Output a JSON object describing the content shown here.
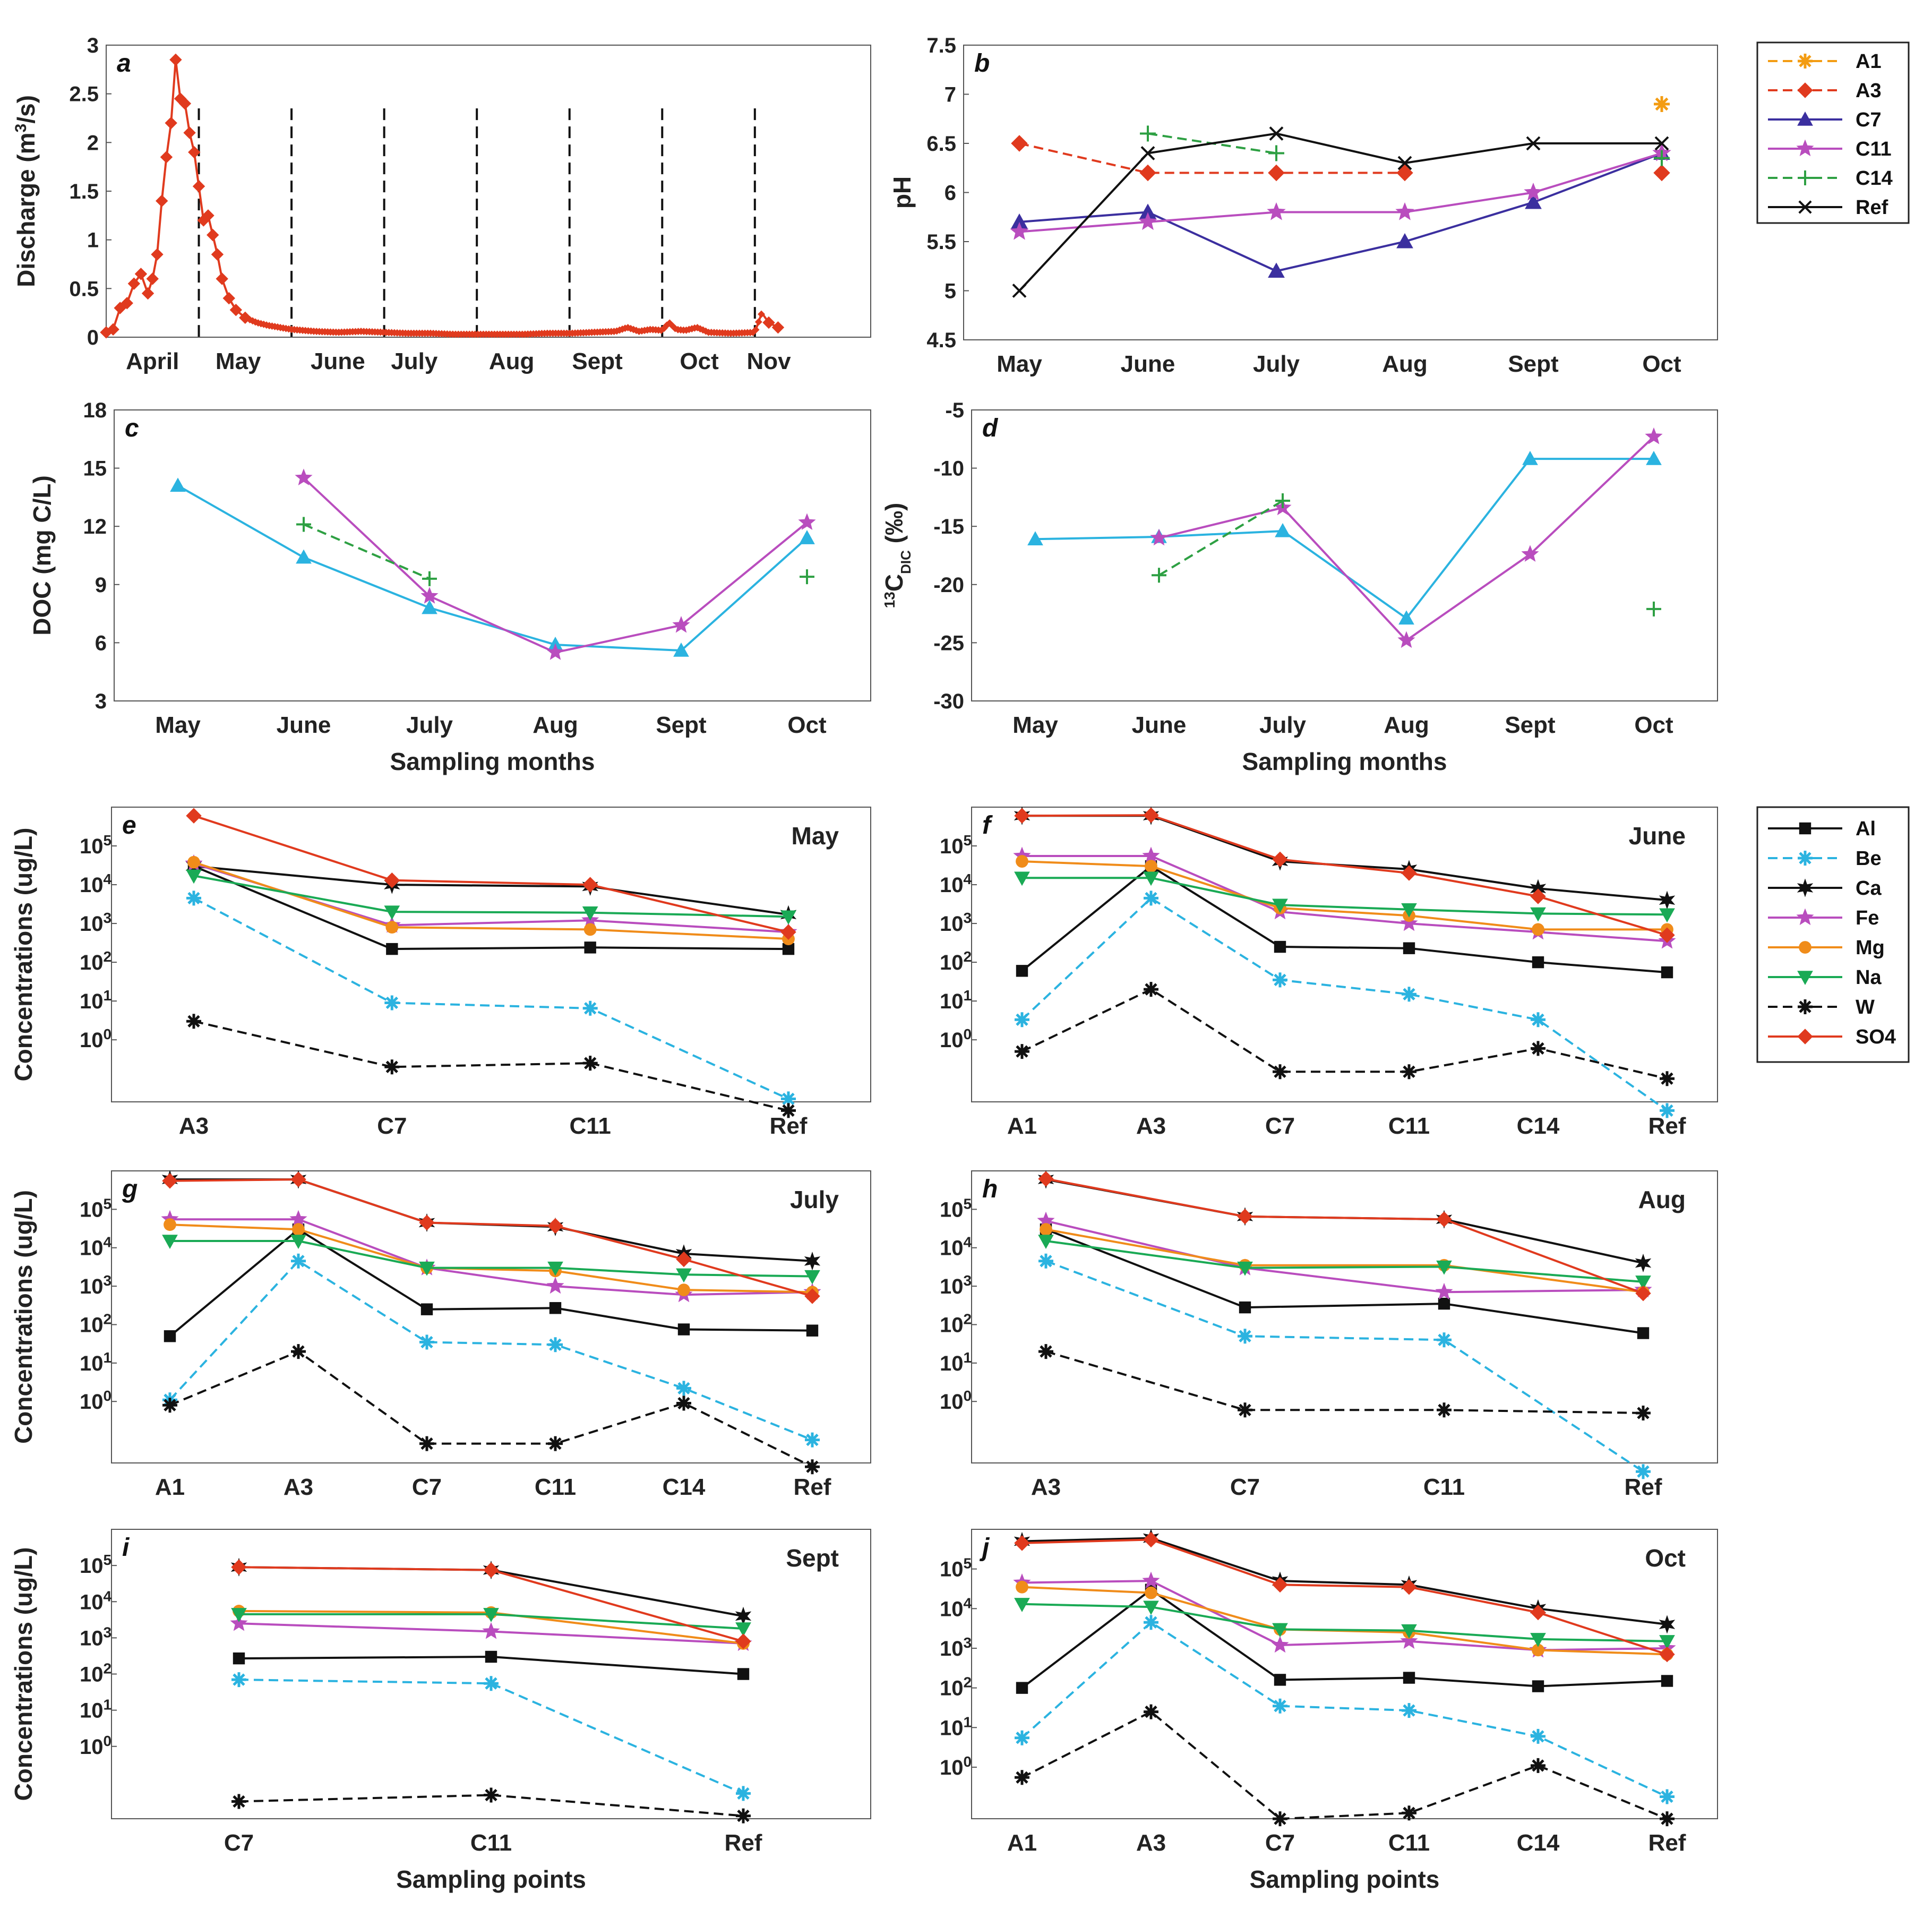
{
  "figure": {
    "xlabel_months": "Sampling months",
    "xlabel_points": "Sampling points"
  },
  "legend_top": {
    "entries": [
      {
        "name": "A1",
        "color": "#f39c12",
        "marker": "asterisk",
        "dash": true
      },
      {
        "name": "A3",
        "color": "#e03a1e",
        "marker": "diamond",
        "dash": true
      },
      {
        "name": "C7",
        "color": "#3b2f9f",
        "marker": "triangle",
        "dash": false
      },
      {
        "name": "C11",
        "color": "#b94dbe",
        "marker": "star",
        "dash": false
      },
      {
        "name": "C14",
        "color": "#2ea043",
        "marker": "plus",
        "dash": true
      },
      {
        "name": "Ref",
        "color": "#111111",
        "marker": "x",
        "dash": false
      }
    ]
  },
  "legend_bottom": {
    "entries": [
      {
        "name": "Al",
        "color": "#111111",
        "marker": "square",
        "dash": false
      },
      {
        "name": "Be",
        "color": "#2bb3e0",
        "marker": "asterisk",
        "dash": true
      },
      {
        "name": "Ca",
        "color": "#111111",
        "marker": "star6",
        "dash": false
      },
      {
        "name": "Fe",
        "color": "#b94dbe",
        "marker": "star",
        "dash": false
      },
      {
        "name": "Mg",
        "color": "#f08c1a",
        "marker": "circle",
        "dash": false
      },
      {
        "name": "Na",
        "color": "#1aaa55",
        "marker": "tri-down",
        "dash": false
      },
      {
        "name": "W",
        "color": "#111111",
        "marker": "asterisk",
        "dash": true
      },
      {
        "name": "SO4",
        "color": "#e03a1e",
        "marker": "diamond",
        "dash": false
      }
    ]
  },
  "chart_data": [
    {
      "panel": "a",
      "type": "line",
      "title": "",
      "ylabel": "Discharge (m³/s)",
      "xlabel": "",
      "ylim": [
        0,
        3
      ],
      "yticks": [
        0,
        0.5,
        1,
        1.5,
        2,
        2.5,
        3
      ],
      "xlim": [
        0,
        33
      ],
      "month_ticks": [
        {
          "label": "April",
          "x": 2.0
        },
        {
          "label": "May",
          "x": 5.7
        },
        {
          "label": "June",
          "x": 10.0
        },
        {
          "label": "July",
          "x": 13.3
        },
        {
          "label": "Aug",
          "x": 17.5
        },
        {
          "label": "Sept",
          "x": 21.2
        },
        {
          "label": "Oct",
          "x": 25.6
        },
        {
          "label": "Nov",
          "x": 28.6
        }
      ],
      "sampling_lines_x": [
        4.0,
        8.0,
        12.0,
        16.0,
        20.0,
        24.0,
        28.0
      ],
      "series": [
        {
          "name": "Discharge",
          "color": "#e03a1e",
          "x": [
            0,
            0.3,
            0.6,
            0.9,
            1.2,
            1.5,
            1.8,
            2.0,
            2.2,
            2.4,
            2.6,
            2.8,
            3.0,
            3.2,
            3.4,
            3.6,
            3.8,
            4.0,
            4.2,
            4.4,
            4.6,
            4.8,
            5.0,
            5.3,
            5.6,
            6,
            6.5,
            7,
            8,
            9,
            10,
            11,
            12,
            13,
            14,
            15,
            16,
            17,
            18,
            19,
            20,
            21,
            22,
            22.5,
            23,
            23.5,
            24,
            24.3,
            24.6,
            25,
            25.5,
            26,
            27,
            28,
            28.3,
            28.6,
            29
          ],
          "y": [
            0.05,
            0.08,
            0.3,
            0.35,
            0.55,
            0.65,
            0.45,
            0.6,
            0.85,
            1.4,
            1.85,
            2.2,
            2.85,
            2.45,
            2.4,
            2.1,
            1.9,
            1.55,
            1.2,
            1.25,
            1.05,
            0.85,
            0.6,
            0.4,
            0.28,
            0.2,
            0.15,
            0.12,
            0.08,
            0.06,
            0.05,
            0.06,
            0.05,
            0.04,
            0.04,
            0.03,
            0.03,
            0.03,
            0.03,
            0.04,
            0.04,
            0.05,
            0.06,
            0.1,
            0.06,
            0.08,
            0.07,
            0.15,
            0.08,
            0.07,
            0.1,
            0.05,
            0.04,
            0.05,
            0.25,
            0.15,
            0.1
          ]
        }
      ]
    },
    {
      "panel": "b",
      "type": "line",
      "ylabel": "pH",
      "xlabel": "",
      "categories": [
        "May",
        "June",
        "July",
        "Aug",
        "Sept",
        "Oct"
      ],
      "ylim": [
        4.5,
        7.5
      ],
      "yticks": [
        4.5,
        5,
        5.5,
        6,
        6.5,
        7,
        7.5
      ],
      "series": [
        {
          "name": "A1",
          "values": [
            null,
            null,
            null,
            null,
            null,
            6.9
          ]
        },
        {
          "name": "A3",
          "values": [
            6.5,
            6.2,
            6.2,
            6.2,
            null,
            6.2
          ]
        },
        {
          "name": "C7",
          "values": [
            5.7,
            5.8,
            5.2,
            5.5,
            5.9,
            6.4
          ]
        },
        {
          "name": "C11",
          "values": [
            5.6,
            5.7,
            5.8,
            5.8,
            6.0,
            6.4
          ]
        },
        {
          "name": "C14",
          "values": [
            null,
            6.6,
            6.4,
            null,
            null,
            6.35
          ]
        },
        {
          "name": "Ref",
          "values": [
            5.0,
            6.4,
            6.6,
            6.3,
            6.5,
            6.5
          ]
        }
      ]
    },
    {
      "panel": "c",
      "type": "line",
      "ylabel": "DOC (mg C/L)",
      "xlabel": "Sampling months",
      "categories": [
        "May",
        "June",
        "July",
        "Aug",
        "Sept",
        "Oct"
      ],
      "ylim": [
        3,
        18
      ],
      "yticks": [
        3,
        6,
        9,
        12,
        15,
        18
      ],
      "series": [
        {
          "name": "C7",
          "color": "#2bb3e0",
          "marker": "triangle",
          "values": [
            14.1,
            10.4,
            7.8,
            5.9,
            5.6,
            11.4
          ]
        },
        {
          "name": "C11",
          "color": "#b94dbe",
          "marker": "star",
          "values": [
            null,
            14.5,
            8.4,
            5.5,
            6.9,
            12.2
          ]
        },
        {
          "name": "C14",
          "color": "#2ea043",
          "marker": "plus",
          "values": [
            null,
            12.1,
            9.3,
            null,
            null,
            9.4
          ]
        }
      ]
    },
    {
      "panel": "d",
      "type": "line",
      "ylabel": "13C DIC (‰)",
      "xlabel": "Sampling months",
      "categories": [
        "May",
        "June",
        "July",
        "Aug",
        "Sept",
        "Oct"
      ],
      "ylim": [
        -30,
        -5
      ],
      "yticks": [
        -30,
        -25,
        -20,
        -15,
        -10,
        -5
      ],
      "series": [
        {
          "name": "C7",
          "color": "#2bb3e0",
          "marker": "triangle",
          "values": [
            -16.1,
            -15.9,
            -15.4,
            -22.9,
            -9.2,
            -9.2
          ]
        },
        {
          "name": "C11",
          "color": "#b94dbe",
          "marker": "star",
          "values": [
            null,
            -16.0,
            -13.4,
            -24.8,
            -17.4,
            -7.3
          ]
        },
        {
          "name": "C14",
          "color": "#2ea043",
          "marker": "plus",
          "values": [
            null,
            -19.2,
            -12.8,
            null,
            null,
            -22.1
          ]
        }
      ]
    },
    {
      "panel": "e",
      "month": "May",
      "type": "line",
      "scale": "log",
      "ylabel": "Concentrations (ug/L)",
      "xlabel": "",
      "categories": [
        "A3",
        "C7",
        "C11",
        "Ref"
      ],
      "ylim_log": [
        -1.6,
        6.0
      ],
      "series": [
        {
          "name": "Al",
          "values": [
            30000,
            220,
            240,
            220
          ]
        },
        {
          "name": "Be",
          "values": [
            4500,
            9,
            6.5,
            0.03
          ]
        },
        {
          "name": "Ca",
          "values": [
            30000,
            10000,
            9000,
            1700
          ]
        },
        {
          "name": "Fe",
          "values": [
            35000,
            900,
            1200,
            600
          ]
        },
        {
          "name": "Mg",
          "values": [
            38000,
            800,
            700,
            400
          ]
        },
        {
          "name": "Na",
          "values": [
            17000,
            2000,
            1900,
            1500
          ]
        },
        {
          "name": "W",
          "values": [
            3,
            0.2,
            0.25,
            0.015
          ]
        },
        {
          "name": "SO4",
          "values": [
            600000,
            13000,
            10000,
            600
          ]
        }
      ]
    },
    {
      "panel": "f",
      "month": "June",
      "type": "line",
      "scale": "log",
      "ylabel": "",
      "xlabel": "",
      "categories": [
        "A1",
        "A3",
        "C7",
        "C11",
        "C14",
        "Ref"
      ],
      "ylim_log": [
        -1.6,
        6.0
      ],
      "series": [
        {
          "name": "Al",
          "values": [
            60,
            30000,
            250,
            230,
            100,
            55
          ]
        },
        {
          "name": "Be",
          "values": [
            3.3,
            4500,
            35,
            15,
            3.3,
            0.015
          ]
        },
        {
          "name": "Ca",
          "values": [
            600000,
            600000,
            40000,
            25000,
            8000,
            4000
          ]
        },
        {
          "name": "Fe",
          "values": [
            55000,
            55000,
            2000,
            1000,
            600,
            350
          ]
        },
        {
          "name": "Mg",
          "values": [
            40000,
            30000,
            2500,
            1600,
            700,
            700
          ]
        },
        {
          "name": "Na",
          "values": [
            15000,
            15000,
            3000,
            2300,
            1800,
            1700
          ]
        },
        {
          "name": "W",
          "values": [
            0.5,
            20,
            0.15,
            0.15,
            0.6,
            0.1
          ]
        },
        {
          "name": "SO4",
          "values": [
            600000,
            620000,
            45000,
            20000,
            5000,
            500
          ]
        }
      ]
    },
    {
      "panel": "g",
      "month": "July",
      "type": "line",
      "scale": "log",
      "ylabel": "Concentrations (ug/L)",
      "xlabel": "",
      "categories": [
        "A1",
        "A3",
        "C7",
        "C11",
        "C14",
        "Ref"
      ],
      "ylim_log": [
        -1.6,
        6.0
      ],
      "series": [
        {
          "name": "Al",
          "values": [
            50,
            30000,
            250,
            270,
            75,
            70
          ]
        },
        {
          "name": "Be",
          "values": [
            1.1,
            4500,
            35,
            30,
            2.2,
            0.1
          ]
        },
        {
          "name": "Ca",
          "values": [
            600000,
            600000,
            45000,
            35000,
            7000,
            4500
          ]
        },
        {
          "name": "Fe",
          "values": [
            55000,
            55000,
            3000,
            1000,
            600,
            700
          ]
        },
        {
          "name": "Mg",
          "values": [
            40000,
            30000,
            3000,
            2500,
            800,
            700
          ]
        },
        {
          "name": "Na",
          "values": [
            15000,
            15000,
            3000,
            3000,
            2000,
            1800
          ]
        },
        {
          "name": "W",
          "values": [
            0.8,
            20,
            0.08,
            0.08,
            0.9,
            0.02
          ]
        },
        {
          "name": "SO4",
          "values": [
            550000,
            600000,
            45000,
            37000,
            5000,
            550
          ]
        }
      ]
    },
    {
      "panel": "h",
      "month": "Aug",
      "type": "line",
      "scale": "log",
      "ylabel": "",
      "xlabel": "",
      "categories": [
        "A3",
        "C7",
        "C11",
        "Ref"
      ],
      "ylim_log": [
        -1.6,
        6.0
      ],
      "series": [
        {
          "name": "Al",
          "values": [
            30000,
            280,
            350,
            60
          ]
        },
        {
          "name": "Be",
          "values": [
            4500,
            50,
            40,
            0.015
          ]
        },
        {
          "name": "Ca",
          "values": [
            600000,
            65000,
            55000,
            4000
          ]
        },
        {
          "name": "Fe",
          "values": [
            50000,
            3000,
            700,
            800
          ]
        },
        {
          "name": "Mg",
          "values": [
            30000,
            3500,
            3500,
            700
          ]
        },
        {
          "name": "Na",
          "values": [
            15000,
            3000,
            3200,
            1300
          ]
        },
        {
          "name": "W",
          "values": [
            20,
            0.6,
            0.6,
            0.5
          ]
        },
        {
          "name": "SO4",
          "values": [
            620000,
            65000,
            55000,
            650
          ]
        }
      ]
    },
    {
      "panel": "i",
      "month": "Sept",
      "type": "line",
      "scale": "log",
      "ylabel": "Concentrations (ug/L)",
      "xlabel": "Sampling points",
      "categories": [
        "C7",
        "C11",
        "Ref"
      ],
      "ylim_log": [
        -2.0,
        6.0
      ],
      "series": [
        {
          "name": "Al",
          "values": [
            270,
            300,
            100
          ]
        },
        {
          "name": "Be",
          "values": [
            70,
            55,
            0.05
          ]
        },
        {
          "name": "Ca",
          "values": [
            90000,
            75000,
            4000
          ]
        },
        {
          "name": "Fe",
          "values": [
            2500,
            1500,
            700
          ]
        },
        {
          "name": "Mg",
          "values": [
            5500,
            5000,
            700
          ]
        },
        {
          "name": "Na",
          "values": [
            4500,
            4500,
            1800
          ]
        },
        {
          "name": "W",
          "values": [
            0.03,
            0.045,
            0.012
          ]
        },
        {
          "name": "SO4",
          "values": [
            90000,
            75000,
            800
          ]
        }
      ]
    },
    {
      "panel": "j",
      "month": "Oct",
      "type": "line",
      "scale": "log",
      "ylabel": "",
      "xlabel": "Sampling points",
      "categories": [
        "A1",
        "A3",
        "C7",
        "C11",
        "C14",
        "Ref"
      ],
      "ylim_log": [
        -1.3,
        6.0
      ],
      "series": [
        {
          "name": "Al",
          "values": [
            100,
            30000,
            160,
            180,
            110,
            150
          ]
        },
        {
          "name": "Be",
          "values": [
            5.5,
            4500,
            35,
            27,
            6,
            0.18
          ]
        },
        {
          "name": "Ca",
          "values": [
            500000,
            600000,
            50000,
            40000,
            10000,
            4000
          ]
        },
        {
          "name": "Fe",
          "values": [
            45000,
            50000,
            1200,
            1500,
            900,
            1000
          ]
        },
        {
          "name": "Mg",
          "values": [
            35000,
            25000,
            3000,
            2500,
            900,
            700
          ]
        },
        {
          "name": "Na",
          "values": [
            13000,
            11000,
            3000,
            2800,
            1700,
            1500
          ]
        },
        {
          "name": "W",
          "values": [
            0.55,
            25,
            0.05,
            0.07,
            1.1,
            0.05
          ]
        },
        {
          "name": "SO4",
          "values": [
            450000,
            550000,
            40000,
            35000,
            8000,
            700
          ]
        }
      ]
    }
  ]
}
